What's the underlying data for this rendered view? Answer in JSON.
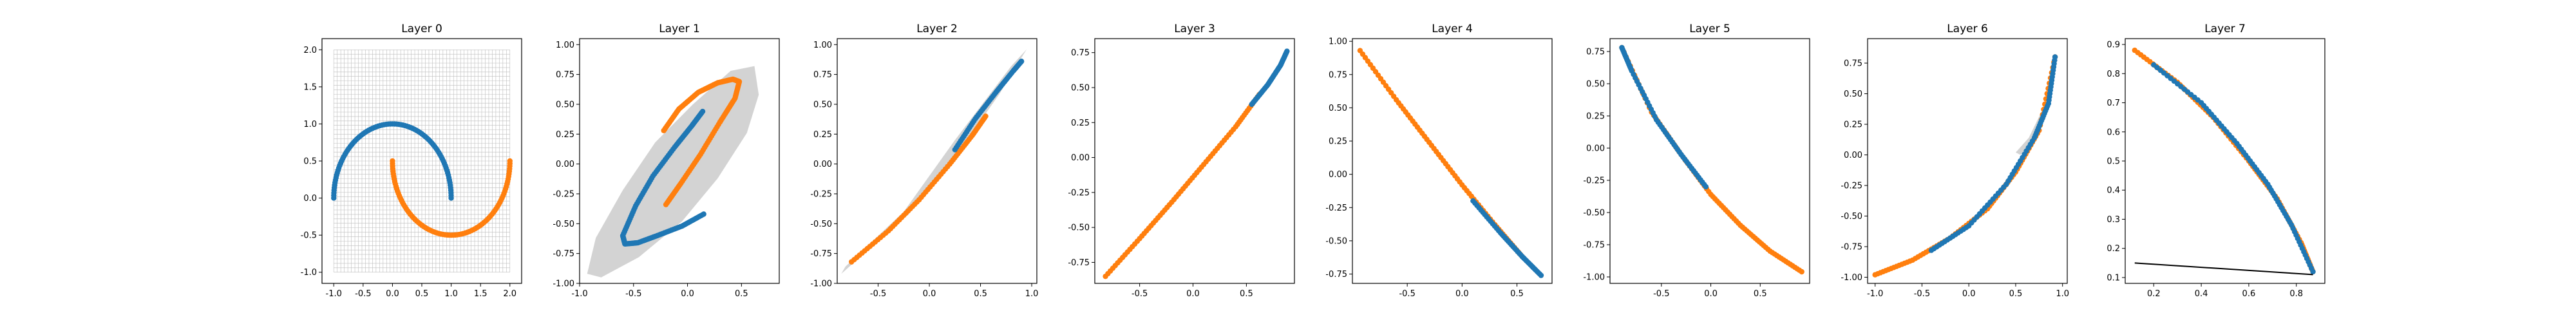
{
  "colors": {
    "series_blue": "#1f77b4",
    "series_orange": "#ff7f0e",
    "region": "#d3d3d3",
    "grid": "#bdbdbd",
    "line": "#000000"
  },
  "chart_data": [
    {
      "type": "scatter",
      "title": "Layer 0",
      "xlim": [
        -1.2,
        2.2
      ],
      "ylim": [
        -1.15,
        2.15
      ],
      "xticks": [
        "-1.0",
        "-0.5",
        "0.0",
        "0.5",
        "1.0",
        "1.5",
        "2.0"
      ],
      "yticks": [
        "-1.0",
        "-0.5",
        "0.0",
        "0.5",
        "1.0",
        "1.5",
        "2.0"
      ],
      "grid": {
        "x": [
          -1.0,
          2.0
        ],
        "y": [
          -1.0,
          2.0
        ],
        "lines": 50
      },
      "series": [
        {
          "color": "blue",
          "curve": {
            "shape": "arc",
            "cx": 0,
            "cy": 0,
            "r": 1,
            "t": [
              0,
              180
            ]
          }
        },
        {
          "color": "orange",
          "curve": {
            "shape": "arc",
            "cx": 1,
            "cy": 0.5,
            "r": 1,
            "t": [
              180,
              360
            ]
          }
        }
      ]
    },
    {
      "type": "scatter",
      "title": "Layer 1",
      "xlim": [
        -1.0,
        0.85
      ],
      "ylim": [
        -1.0,
        1.05
      ],
      "xticks": [
        "-1.0",
        "-0.5",
        "0.0",
        "0.5"
      ],
      "yticks": [
        "-1.00",
        "-0.75",
        "-0.50",
        "-0.25",
        "0.00",
        "0.25",
        "0.50",
        "0.75",
        "1.00"
      ],
      "region": [
        [
          -0.93,
          -0.92
        ],
        [
          -0.85,
          -0.62
        ],
        [
          -0.6,
          -0.22
        ],
        [
          -0.3,
          0.18
        ],
        [
          0.05,
          0.5
        ],
        [
          0.4,
          0.78
        ],
        [
          0.62,
          0.82
        ],
        [
          0.66,
          0.58
        ],
        [
          0.55,
          0.26
        ],
        [
          0.28,
          -0.12
        ],
        [
          -0.05,
          -0.48
        ],
        [
          -0.45,
          -0.78
        ],
        [
          -0.8,
          -0.95
        ]
      ],
      "series": [
        {
          "color": "blue",
          "curve": {
            "shape": "points",
            "pts": [
              [
                0.15,
                -0.42
              ],
              [
                -0.05,
                -0.52
              ],
              [
                -0.28,
                -0.6
              ],
              [
                -0.46,
                -0.66
              ],
              [
                -0.58,
                -0.67
              ],
              [
                -0.6,
                -0.6
              ],
              [
                -0.48,
                -0.35
              ],
              [
                -0.32,
                -0.1
              ],
              [
                -0.12,
                0.14
              ],
              [
                0.04,
                0.32
              ],
              [
                0.14,
                0.44
              ]
            ]
          }
        },
        {
          "color": "orange",
          "curve": {
            "shape": "points",
            "pts": [
              [
                -0.22,
                0.28
              ],
              [
                -0.08,
                0.46
              ],
              [
                0.1,
                0.6
              ],
              [
                0.28,
                0.68
              ],
              [
                0.42,
                0.71
              ],
              [
                0.48,
                0.69
              ],
              [
                0.44,
                0.55
              ],
              [
                0.3,
                0.35
              ],
              [
                0.12,
                0.08
              ],
              [
                -0.06,
                -0.16
              ],
              [
                -0.2,
                -0.34
              ]
            ]
          }
        }
      ]
    },
    {
      "type": "scatter",
      "title": "Layer 2",
      "xlim": [
        -0.9,
        1.05
      ],
      "ylim": [
        -1.0,
        1.05
      ],
      "xticks": [
        "-0.5",
        "0.0",
        "0.5",
        "1.0"
      ],
      "yticks": [
        "-1.00",
        "-0.75",
        "-0.50",
        "-0.25",
        "0.00",
        "0.25",
        "0.50",
        "0.75",
        "1.00"
      ],
      "region": [
        [
          -0.86,
          -0.92
        ],
        [
          -0.2,
          -0.42
        ],
        [
          0.3,
          0.12
        ],
        [
          0.68,
          0.58
        ],
        [
          0.95,
          0.96
        ],
        [
          0.8,
          0.82
        ],
        [
          0.25,
          0.2
        ],
        [
          -0.25,
          -0.4
        ],
        [
          -0.82,
          -0.86
        ]
      ],
      "series": [
        {
          "color": "orange",
          "curve": {
            "shape": "points",
            "pts": [
              [
                -0.76,
                -0.82
              ],
              [
                -0.4,
                -0.56
              ],
              [
                -0.1,
                -0.3
              ],
              [
                0.2,
                0.0
              ],
              [
                0.42,
                0.24
              ],
              [
                0.55,
                0.4
              ]
            ]
          }
        },
        {
          "color": "blue",
          "curve": {
            "shape": "points",
            "pts": [
              [
                0.25,
                0.12
              ],
              [
                0.45,
                0.38
              ],
              [
                0.65,
                0.6
              ],
              [
                0.82,
                0.78
              ],
              [
                0.9,
                0.86
              ]
            ]
          }
        }
      ]
    },
    {
      "type": "scatter",
      "title": "Layer 3",
      "xlim": [
        -0.92,
        0.95
      ],
      "ylim": [
        -0.9,
        0.85
      ],
      "xticks": [
        "-0.5",
        "0.0",
        "0.5"
      ],
      "yticks": [
        "-0.75",
        "-0.50",
        "-0.25",
        "0.00",
        "0.25",
        "0.50",
        "0.75"
      ],
      "series": [
        {
          "color": "orange",
          "curve": {
            "shape": "points",
            "pts": [
              [
                -0.82,
                -0.85
              ],
              [
                -0.5,
                -0.58
              ],
              [
                -0.2,
                -0.32
              ],
              [
                0.1,
                -0.05
              ],
              [
                0.4,
                0.22
              ],
              [
                0.62,
                0.45
              ]
            ]
          }
        },
        {
          "color": "blue",
          "curve": {
            "shape": "points",
            "pts": [
              [
                0.55,
                0.38
              ],
              [
                0.7,
                0.52
              ],
              [
                0.82,
                0.66
              ],
              [
                0.88,
                0.76
              ]
            ]
          }
        }
      ]
    },
    {
      "type": "scatter",
      "title": "Layer 4",
      "xlim": [
        -1.0,
        0.82
      ],
      "ylim": [
        -0.82,
        1.02
      ],
      "xticks": [
        "-0.5",
        "0.0",
        "0.5"
      ],
      "yticks": [
        "-0.75",
        "-0.50",
        "-0.25",
        "0.00",
        "0.25",
        "0.50",
        "0.75",
        "1.00"
      ],
      "series": [
        {
          "color": "orange",
          "curve": {
            "shape": "points",
            "pts": [
              [
                -0.93,
                0.93
              ],
              [
                -0.6,
                0.56
              ],
              [
                -0.3,
                0.24
              ],
              [
                0.0,
                -0.08
              ],
              [
                0.3,
                -0.38
              ],
              [
                0.55,
                -0.62
              ]
            ]
          }
        },
        {
          "color": "blue",
          "curve": {
            "shape": "points",
            "pts": [
              [
                0.1,
                -0.2
              ],
              [
                0.35,
                -0.44
              ],
              [
                0.55,
                -0.62
              ],
              [
                0.72,
                -0.76
              ]
            ]
          }
        }
      ]
    },
    {
      "type": "scatter",
      "title": "Layer 5",
      "xlim": [
        -1.02,
        1.0
      ],
      "ylim": [
        -1.05,
        0.85
      ],
      "xticks": [
        "-0.5",
        "0.0",
        "0.5"
      ],
      "yticks": [
        "-1.00",
        "-0.75",
        "-0.50",
        "-0.25",
        "0.00",
        "0.25",
        "0.50",
        "0.75"
      ],
      "series": [
        {
          "color": "orange",
          "curve": {
            "shape": "points",
            "pts": [
              [
                -0.9,
                0.78
              ],
              [
                -0.6,
                0.28
              ],
              [
                -0.3,
                -0.05
              ],
              [
                0.0,
                -0.36
              ],
              [
                0.3,
                -0.6
              ],
              [
                0.6,
                -0.8
              ],
              [
                0.92,
                -0.96
              ]
            ]
          }
        },
        {
          "color": "blue",
          "curve": {
            "shape": "points",
            "pts": [
              [
                -0.9,
                0.78
              ],
              [
                -0.8,
                0.6
              ],
              [
                -0.55,
                0.22
              ],
              [
                -0.3,
                -0.05
              ],
              [
                -0.05,
                -0.3
              ]
            ]
          }
        }
      ]
    },
    {
      "type": "scatter",
      "title": "Layer 6",
      "xlim": [
        -1.08,
        1.05
      ],
      "ylim": [
        -1.05,
        0.95
      ],
      "xticks": [
        "-1.0",
        "-0.5",
        "0.0",
        "0.5",
        "1.0"
      ],
      "yticks": [
        "-1.00",
        "-0.75",
        "-0.50",
        "-0.25",
        "0.00",
        "0.25",
        "0.50",
        "0.75"
      ],
      "region": [
        [
          0.55,
          0.0
        ],
        [
          0.7,
          0.12
        ],
        [
          0.82,
          0.3
        ],
        [
          0.78,
          0.36
        ],
        [
          0.64,
          0.14
        ],
        [
          0.5,
          0.02
        ]
      ],
      "series": [
        {
          "color": "orange",
          "curve": {
            "shape": "points",
            "pts": [
              [
                -1.0,
                -0.98
              ],
              [
                -0.6,
                -0.86
              ],
              [
                -0.2,
                -0.68
              ],
              [
                0.2,
                -0.44
              ],
              [
                0.5,
                -0.14
              ],
              [
                0.75,
                0.2
              ],
              [
                0.92,
                0.8
              ]
            ]
          }
        },
        {
          "color": "blue",
          "curve": {
            "shape": "points",
            "pts": [
              [
                -0.4,
                -0.78
              ],
              [
                0.0,
                -0.58
              ],
              [
                0.4,
                -0.24
              ],
              [
                0.7,
                0.14
              ],
              [
                0.85,
                0.42
              ],
              [
                0.92,
                0.8
              ]
            ]
          }
        }
      ]
    },
    {
      "type": "scatter",
      "title": "Layer 7",
      "xlim": [
        0.08,
        0.92
      ],
      "ylim": [
        0.08,
        0.92
      ],
      "xticks": [
        "0.2",
        "0.4",
        "0.6",
        "0.8"
      ],
      "yticks": [
        "0.1",
        "0.2",
        "0.3",
        "0.4",
        "0.5",
        "0.6",
        "0.7",
        "0.8",
        "0.9"
      ],
      "line": [
        [
          0.12,
          0.15
        ],
        [
          0.87,
          0.11
        ]
      ],
      "series": [
        {
          "color": "orange",
          "curve": {
            "shape": "points",
            "pts": [
              [
                0.12,
                0.88
              ],
              [
                0.3,
                0.77
              ],
              [
                0.45,
                0.65
              ],
              [
                0.6,
                0.5
              ],
              [
                0.72,
                0.37
              ],
              [
                0.82,
                0.22
              ],
              [
                0.87,
                0.12
              ]
            ]
          }
        },
        {
          "color": "blue",
          "curve": {
            "shape": "points",
            "pts": [
              [
                0.2,
                0.83
              ],
              [
                0.4,
                0.7
              ],
              [
                0.55,
                0.56
              ],
              [
                0.68,
                0.42
              ],
              [
                0.78,
                0.28
              ],
              [
                0.87,
                0.12
              ]
            ]
          }
        }
      ]
    }
  ]
}
